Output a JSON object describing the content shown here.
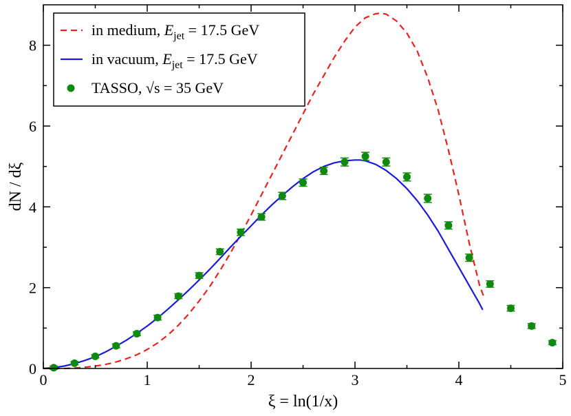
{
  "chart_data": {
    "type": "line",
    "xlabel": "ξ = ln(1/x)",
    "ylabel": "dN / dξ",
    "xlim": [
      0,
      5
    ],
    "ylim": [
      0,
      9
    ],
    "x_ticks": [
      0,
      1,
      2,
      3,
      4,
      5
    ],
    "y_ticks": [
      0,
      2,
      4,
      6,
      8
    ],
    "x_tick_labels": [
      "0",
      "1",
      "2",
      "3",
      "4",
      "5"
    ],
    "y_tick_labels": [
      "0",
      "2",
      "4",
      "6",
      "8"
    ],
    "grid": false,
    "legend_position": "top-left",
    "series": [
      {
        "name": "in medium, E_jet = 17.5 GeV",
        "legend_label": "in medium, Ejet = 17.5 GeV",
        "style": "dashed",
        "color": "#e8231e",
        "x": [
          0.0,
          0.1,
          0.2,
          0.3,
          0.4,
          0.5,
          0.6,
          0.7,
          0.8,
          0.9,
          1.0,
          1.1,
          1.2,
          1.3,
          1.4,
          1.5,
          1.6,
          1.7,
          1.8,
          1.9,
          2.0,
          2.1,
          2.2,
          2.3,
          2.4,
          2.5,
          2.6,
          2.7,
          2.8,
          2.9,
          3.0,
          3.1,
          3.2,
          3.25,
          3.3,
          3.4,
          3.5,
          3.6,
          3.7,
          3.8,
          3.9,
          4.0,
          4.1,
          4.2,
          4.24
        ],
        "y": [
          0.0,
          0.0,
          0.0,
          0.01,
          0.03,
          0.06,
          0.1,
          0.16,
          0.24,
          0.34,
          0.47,
          0.63,
          0.83,
          1.07,
          1.35,
          1.67,
          2.02,
          2.42,
          2.85,
          3.32,
          3.8,
          4.3,
          4.8,
          5.3,
          5.8,
          6.3,
          6.8,
          7.25,
          7.7,
          8.1,
          8.45,
          8.68,
          8.78,
          8.79,
          8.77,
          8.6,
          8.3,
          7.85,
          7.2,
          6.4,
          5.4,
          4.3,
          3.1,
          2.05,
          1.78
        ]
      },
      {
        "name": "in vacuum, E_jet = 17.5 GeV",
        "legend_label": "in vacuum, Ejet = 17.5 GeV",
        "style": "solid",
        "color": "#1a1adb",
        "x": [
          0.0,
          0.1,
          0.2,
          0.3,
          0.4,
          0.5,
          0.6,
          0.7,
          0.8,
          0.9,
          1.0,
          1.1,
          1.2,
          1.3,
          1.4,
          1.5,
          1.6,
          1.7,
          1.8,
          1.9,
          2.0,
          2.1,
          2.2,
          2.3,
          2.4,
          2.5,
          2.6,
          2.7,
          2.8,
          2.9,
          3.0,
          3.05,
          3.1,
          3.2,
          3.3,
          3.4,
          3.5,
          3.6,
          3.7,
          3.8,
          3.9,
          4.0,
          4.1,
          4.2,
          4.23
        ],
        "y": [
          0.0,
          0.02,
          0.06,
          0.12,
          0.2,
          0.29,
          0.41,
          0.55,
          0.7,
          0.87,
          1.05,
          1.25,
          1.47,
          1.7,
          1.94,
          2.19,
          2.45,
          2.72,
          3.0,
          3.27,
          3.53,
          3.8,
          4.05,
          4.28,
          4.5,
          4.7,
          4.87,
          5.0,
          5.09,
          5.14,
          5.16,
          5.16,
          5.14,
          5.05,
          4.9,
          4.7,
          4.45,
          4.15,
          3.8,
          3.4,
          2.95,
          2.5,
          2.05,
          1.6,
          1.45
        ]
      },
      {
        "name": "TASSO, √s = 35 GeV",
        "legend_label": "TASSO, √s = 35 GeV",
        "style": "markers",
        "color": "#0f8a0f",
        "x": [
          0.1,
          0.3,
          0.5,
          0.7,
          0.9,
          1.1,
          1.3,
          1.5,
          1.7,
          1.9,
          2.1,
          2.3,
          2.5,
          2.7,
          2.9,
          3.1,
          3.3,
          3.5,
          3.7,
          3.9,
          4.1,
          4.3,
          4.5,
          4.7,
          4.9
        ],
        "y": [
          0.02,
          0.13,
          0.3,
          0.56,
          0.86,
          1.26,
          1.79,
          2.3,
          2.89,
          3.37,
          3.75,
          4.27,
          4.6,
          4.89,
          5.11,
          5.25,
          5.11,
          4.74,
          4.21,
          3.54,
          2.74,
          2.09,
          1.49,
          1.05,
          0.64
        ],
        "errors": [
          0.04,
          0.04,
          0.04,
          0.05,
          0.05,
          0.06,
          0.06,
          0.07,
          0.07,
          0.08,
          0.08,
          0.09,
          0.09,
          0.09,
          0.1,
          0.1,
          0.1,
          0.1,
          0.1,
          0.09,
          0.09,
          0.08,
          0.07,
          0.06,
          0.05
        ]
      }
    ]
  }
}
